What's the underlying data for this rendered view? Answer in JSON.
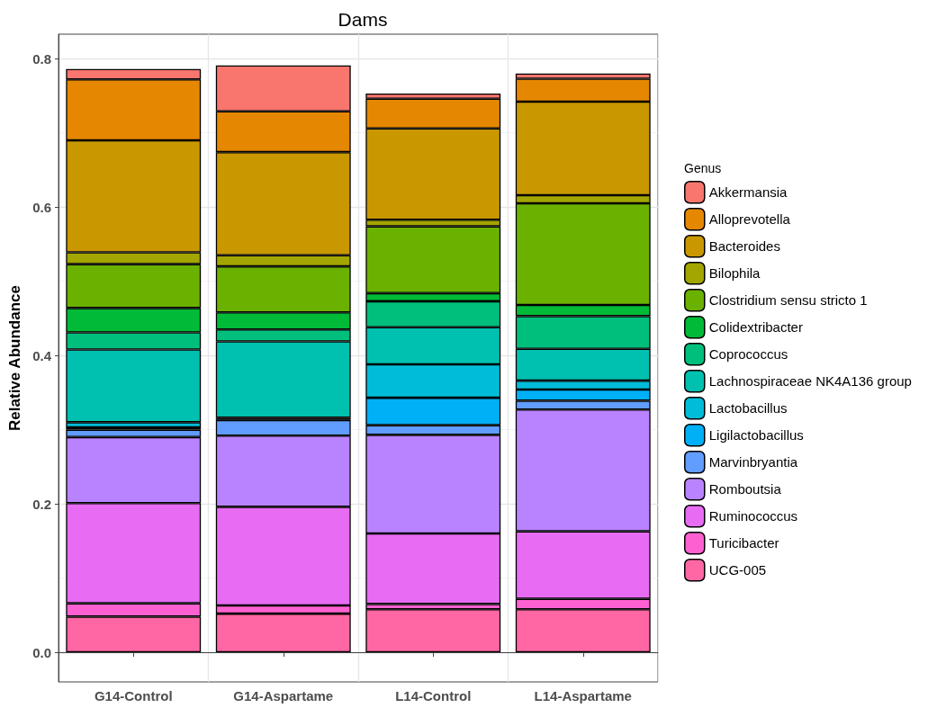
{
  "chart_data": {
    "type": "bar",
    "title": "Dams",
    "ylabel": "Relative Abundance",
    "legend_title": "Genus",
    "stacked": true,
    "grid": true,
    "legend": "right",
    "categories": [
      "G14-Control",
      "G14-Aspartame",
      "L14-Control",
      "L14-Aspartame"
    ],
    "ylim": [
      -0.04,
      0.833
    ],
    "yticks": [
      {
        "value": 0,
        "label": "0.0"
      },
      {
        "value": 0.2,
        "label": "0.2"
      },
      {
        "value": 0.4,
        "label": "0.4"
      },
      {
        "value": 0.6,
        "label": "0.6"
      },
      {
        "value": 0.8,
        "label": "0.8"
      }
    ],
    "series": [
      {
        "name": "UCG-005",
        "color": "#ff67a4",
        "values": [
          0.048,
          0.052,
          0.058,
          0.058
        ]
      },
      {
        "name": "Turicibacter",
        "color": "#fd61d1",
        "values": [
          0.018,
          0.011,
          0.007,
          0.014
        ]
      },
      {
        "name": "Ruminococcus",
        "color": "#e76bf3",
        "values": [
          0.135,
          0.133,
          0.095,
          0.091
        ]
      },
      {
        "name": "Romboutsia",
        "color": "#b983ff",
        "values": [
          0.089,
          0.096,
          0.133,
          0.164
        ]
      },
      {
        "name": "Marvinbryantia",
        "color": "#619cff",
        "values": [
          0.01,
          0.021,
          0.013,
          0.012
        ]
      },
      {
        "name": "Ligilactobacillus",
        "color": "#00b0f6",
        "values": [
          0.003,
          null,
          0.037,
          0.015
        ]
      },
      {
        "name": "Lactobacillus",
        "color": "#00bcd8",
        "values": [
          0.007,
          0.003,
          0.045,
          0.012
        ]
      },
      {
        "name": "Lachnospiraceae NK4A136 group",
        "color": "#00c0af",
        "values": [
          0.098,
          0.103,
          0.05,
          0.043
        ]
      },
      {
        "name": "Coprococcus",
        "color": "#00bf7d",
        "values": [
          0.023,
          0.016,
          0.035,
          0.044
        ]
      },
      {
        "name": "Colidextribacter",
        "color": "#00ba38",
        "values": [
          0.033,
          0.023,
          0.011,
          0.015
        ]
      },
      {
        "name": "Clostridium sensu stricto 1",
        "color": "#6bb100",
        "values": [
          0.059,
          0.062,
          0.09,
          0.137
        ]
      },
      {
        "name": "Bilophila",
        "color": "#a3a500",
        "values": [
          0.016,
          0.015,
          0.009,
          0.011
        ]
      },
      {
        "name": "Bacteroides",
        "color": "#c99800",
        "values": [
          0.151,
          0.139,
          0.123,
          0.126
        ]
      },
      {
        "name": "Alloprevotella",
        "color": "#e58700",
        "values": [
          0.082,
          0.055,
          0.04,
          0.031
        ]
      },
      {
        "name": "Akkermansia",
        "color": "#f8766d",
        "values": [
          0.014,
          0.062,
          0.007,
          0.007
        ]
      }
    ]
  }
}
